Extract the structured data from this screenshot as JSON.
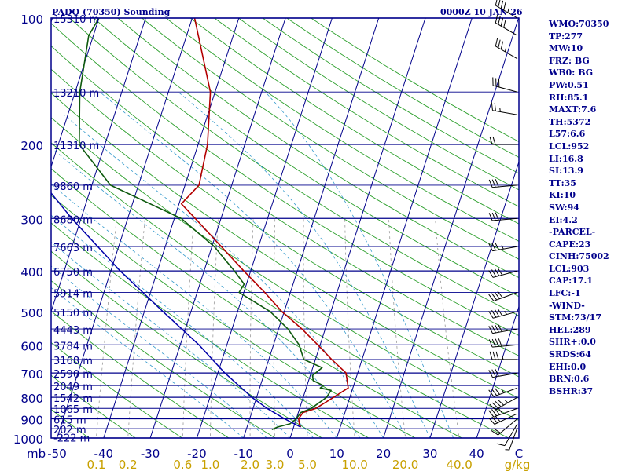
{
  "header": {
    "station": "PADQ (70350) Sounding",
    "datetime": "0000Z 10 JAN 26"
  },
  "indices": [
    "WMO:70350",
    "TP:277",
    "MW:10",
    "FRZ: BG",
    "WB0: BG",
    "PW:0.51",
    "RH:85.1",
    "MAXT:7.6",
    "TH:5372",
    "L57:6.6",
    "LCL:952",
    "LI:16.8",
    "SI:13.9",
    "TT:35",
    "KI:10",
    "SW:94",
    "EI:4.2",
    "-PARCEL-",
    "CAPE:23",
    "CINH:75002",
    "LCL:903",
    "CAP:17.1",
    "LFC:-1",
    "-WIND-",
    "STM:73/17",
    "HEL:289",
    "SHR+:0.0",
    "SRDS:64",
    "EHI:0.0",
    "BRN:0.6",
    "BSHR:37"
  ],
  "colors": {
    "axis": "#00008b",
    "isobar": "#00008b",
    "isotherm": "#00008b",
    "dry_adiabat": "#2ea02e",
    "moist_adiabat": "#3399cc",
    "mixing_ratio": "#999999",
    "temperature": "#b30000",
    "dewpoint": "#0e5a0e",
    "parcel": "#0000aa",
    "x_ticks": "#00008b",
    "w_labels": "#c8a000"
  },
  "chart_data": {
    "type": "line",
    "title": "PADQ (70350) Sounding",
    "xlabel": "",
    "ylabel": "mb",
    "xlim": [
      -50,
      50
    ],
    "ylim": [
      1000,
      100
    ],
    "yscale": "log",
    "pressure_levels": [
      100,
      200,
      300,
      400,
      500,
      600,
      700,
      800,
      900,
      1000
    ],
    "x_ticks": [
      -50,
      -40,
      -30,
      -20,
      -10,
      0,
      10,
      20,
      30,
      40
    ],
    "mixing_ratio_labels": [
      "0.1",
      "0.2",
      "0.6",
      "1.0",
      "2.0",
      "3.0",
      "5.0",
      "10.0",
      "20.0",
      "40.0"
    ],
    "mixing_ratio_values": [
      0.1,
      0.2,
      0.6,
      1.0,
      2.0,
      3.0,
      5.0,
      10.0,
      20.0,
      40.0
    ],
    "w_unit": "g/kg",
    "height_labels": [
      {
        "p": 100,
        "text": "15310 m"
      },
      {
        "p": 150,
        "text": "13210 m"
      },
      {
        "p": 200,
        "text": "11310 m"
      },
      {
        "p": 250,
        "text": "9860 m"
      },
      {
        "p": 300,
        "text": "8680 m"
      },
      {
        "p": 350,
        "text": "7663 m"
      },
      {
        "p": 400,
        "text": "6750 m"
      },
      {
        "p": 450,
        "text": "5914 m"
      },
      {
        "p": 500,
        "text": "5150 m"
      },
      {
        "p": 550,
        "text": "4443 m"
      },
      {
        "p": 600,
        "text": "3784 m"
      },
      {
        "p": 650,
        "text": "3168 m"
      },
      {
        "p": 700,
        "text": "2590 m"
      },
      {
        "p": 750,
        "text": "2049 m"
      },
      {
        "p": 800,
        "text": "1542 m"
      },
      {
        "p": 850,
        "text": "1065 m"
      },
      {
        "p": 900,
        "text": "615 m"
      },
      {
        "p": 950,
        "text": "202 m"
      },
      {
        "p": 993,
        "text": "-222 m"
      }
    ],
    "series": [
      {
        "key": "temperature",
        "points": [
          {
            "p": 942,
            "t": 1.5
          },
          {
            "p": 925,
            "t": 1.0
          },
          {
            "p": 900,
            "t": 0.5
          },
          {
            "p": 870,
            "t": 1.0
          },
          {
            "p": 850,
            "t": 3.5
          },
          {
            "p": 800,
            "t": 6.5
          },
          {
            "p": 760,
            "t": 9.0
          },
          {
            "p": 700,
            "t": 7.5
          },
          {
            "p": 650,
            "t": 3.5
          },
          {
            "p": 600,
            "t": -0.5
          },
          {
            "p": 550,
            "t": -5.0
          },
          {
            "p": 500,
            "t": -10.5
          },
          {
            "p": 450,
            "t": -15.5
          },
          {
            "p": 400,
            "t": -21.5
          },
          {
            "p": 350,
            "t": -28.0
          },
          {
            "p": 300,
            "t": -35.5
          },
          {
            "p": 277,
            "t": -39.5
          },
          {
            "p": 250,
            "t": -37.0
          },
          {
            "p": 200,
            "t": -38.0
          },
          {
            "p": 150,
            "t": -41.0
          },
          {
            "p": 100,
            "t": -49.5
          }
        ]
      },
      {
        "key": "dewpoint",
        "points": [
          {
            "p": 955,
            "t": -4.5
          },
          {
            "p": 942,
            "t": -3.5
          },
          {
            "p": 925,
            "t": -1.0
          },
          {
            "p": 900,
            "t": 0.0
          },
          {
            "p": 870,
            "t": 0.5
          },
          {
            "p": 850,
            "t": 2.5
          },
          {
            "p": 800,
            "t": 5.0
          },
          {
            "p": 770,
            "t": 5.5
          },
          {
            "p": 760,
            "t": 3.0
          },
          {
            "p": 750,
            "t": 3.5
          },
          {
            "p": 730,
            "t": 1.0
          },
          {
            "p": 710,
            "t": 0.5
          },
          {
            "p": 680,
            "t": 2.0
          },
          {
            "p": 650,
            "t": -2.5
          },
          {
            "p": 600,
            "t": -4.5
          },
          {
            "p": 550,
            "t": -8.0
          },
          {
            "p": 500,
            "t": -13.0
          },
          {
            "p": 450,
            "t": -21.0
          },
          {
            "p": 430,
            "t": -20.5
          },
          {
            "p": 400,
            "t": -23.5
          },
          {
            "p": 350,
            "t": -29.5
          },
          {
            "p": 300,
            "t": -38.5
          },
          {
            "p": 250,
            "t": -56.0
          },
          {
            "p": 200,
            "t": -65.5
          },
          {
            "p": 150,
            "t": -69.0
          },
          {
            "p": 110,
            "t": -71.0
          },
          {
            "p": 100,
            "t": -70.0
          }
        ]
      },
      {
        "key": "parcel",
        "points": [
          {
            "p": 942,
            "t": 1.5
          },
          {
            "p": 900,
            "t": -2.5
          },
          {
            "p": 850,
            "t": -7.0
          },
          {
            "p": 800,
            "t": -11.0
          },
          {
            "p": 700,
            "t": -18.5
          },
          {
            "p": 600,
            "t": -26.0
          },
          {
            "p": 500,
            "t": -36.0
          },
          {
            "p": 400,
            "t": -48.0
          },
          {
            "p": 300,
            "t": -62.0
          },
          {
            "p": 200,
            "t": -80.0
          },
          {
            "p": 150,
            "t": -91.0
          },
          {
            "p": 120,
            "t": -98.0
          }
        ]
      }
    ],
    "winds": [
      {
        "p": 945,
        "dir": 200,
        "spd": 5
      },
      {
        "p": 925,
        "dir": 210,
        "spd": 10
      },
      {
        "p": 900,
        "dir": 230,
        "spd": 20
      },
      {
        "p": 875,
        "dir": 245,
        "spd": 30
      },
      {
        "p": 850,
        "dir": 250,
        "spd": 40
      },
      {
        "p": 800,
        "dir": 240,
        "spd": 45
      },
      {
        "p": 760,
        "dir": 250,
        "spd": 35
      },
      {
        "p": 700,
        "dir": 260,
        "spd": 30
      },
      {
        "p": 650,
        "dir": 270,
        "spd": 35
      },
      {
        "p": 600,
        "dir": 265,
        "spd": 40
      },
      {
        "p": 550,
        "dir": 260,
        "spd": 40
      },
      {
        "p": 500,
        "dir": 255,
        "spd": 45
      },
      {
        "p": 450,
        "dir": 250,
        "spd": 40
      },
      {
        "p": 400,
        "dir": 255,
        "spd": 40
      },
      {
        "p": 350,
        "dir": 260,
        "spd": 35
      },
      {
        "p": 300,
        "dir": 265,
        "spd": 30
      },
      {
        "p": 250,
        "dir": 265,
        "spd": 30
      },
      {
        "p": 200,
        "dir": 270,
        "spd": 20
      },
      {
        "p": 170,
        "dir": 280,
        "spd": 25
      },
      {
        "p": 150,
        "dir": 285,
        "spd": 30
      },
      {
        "p": 125,
        "dir": 300,
        "spd": 35
      },
      {
        "p": 110,
        "dir": 300,
        "spd": 40
      },
      {
        "p": 100,
        "dir": 300,
        "spd": 45
      }
    ]
  }
}
